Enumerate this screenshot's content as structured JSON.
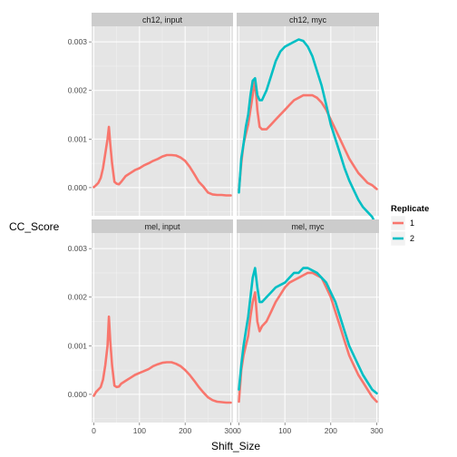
{
  "chart_data": {
    "type": "line",
    "xlabel": "Shift_Size",
    "ylabel": "CC_Score",
    "xlim": [
      -5,
      305
    ],
    "ylim": [
      -0.00058,
      0.00332
    ],
    "x_ticks": [
      0,
      100,
      200,
      300
    ],
    "y_ticks": [
      0.0,
      0.001,
      0.002,
      0.003
    ],
    "y_tick_labels": [
      "0.000",
      "0.001",
      "0.002",
      "0.003"
    ],
    "grid": true,
    "legend": {
      "title": "Replicate",
      "position": "right",
      "entries": [
        "1",
        "2"
      ]
    },
    "series_colors": {
      "1": "#F8766D",
      "2": "#00BFC4"
    },
    "panels": [
      {
        "strip": "ch12, input",
        "series": [
          {
            "name": "1",
            "x": [
              0,
              5,
              10,
              15,
              20,
              25,
              30,
              33,
              36,
              40,
              45,
              50,
              55,
              60,
              70,
              80,
              90,
              100,
              110,
              120,
              130,
              140,
              150,
              160,
              170,
              180,
              190,
              200,
              210,
              220,
              230,
              240,
              250,
              260,
              270,
              280,
              290,
              300
            ],
            "y": [
              1e-05,
              5e-05,
              0.0001,
              0.0002,
              0.0004,
              0.0007,
              0.001,
              0.00125,
              0.0009,
              0.0005,
              0.00012,
              8e-05,
              7e-05,
              0.00012,
              0.00024,
              0.0003,
              0.00036,
              0.0004,
              0.00046,
              0.0005,
              0.00055,
              0.00059,
              0.00064,
              0.00067,
              0.00067,
              0.00066,
              0.00062,
              0.00055,
              0.00043,
              0.00028,
              0.00012,
              2e-05,
              -0.0001,
              -0.00014,
              -0.00015,
              -0.00015,
              -0.00016,
              -0.00016
            ]
          }
        ]
      },
      {
        "strip": "ch12, myc",
        "series": [
          {
            "name": "1",
            "x": [
              0,
              5,
              10,
              15,
              20,
              25,
              30,
              35,
              40,
              45,
              50,
              60,
              70,
              80,
              90,
              100,
              110,
              120,
              130,
              140,
              150,
              160,
              170,
              180,
              190,
              200,
              210,
              220,
              230,
              240,
              250,
              260,
              270,
              280,
              290,
              300
            ],
            "y": [
              -5e-05,
              0.0005,
              0.0009,
              0.0011,
              0.0013,
              0.0016,
              0.0019,
              0.0022,
              0.0016,
              0.00125,
              0.0012,
              0.0012,
              0.0013,
              0.0014,
              0.0015,
              0.0016,
              0.0017,
              0.0018,
              0.00185,
              0.0019,
              0.0019,
              0.0019,
              0.00185,
              0.00175,
              0.0016,
              0.0014,
              0.0012,
              0.001,
              0.0008,
              0.0006,
              0.00045,
              0.0003,
              0.0002,
              0.0001,
              5e-05,
              -3e-05
            ]
          },
          {
            "name": "2",
            "x": [
              0,
              5,
              10,
              15,
              20,
              25,
              30,
              35,
              40,
              45,
              50,
              60,
              70,
              80,
              90,
              100,
              110,
              120,
              130,
              140,
              150,
              160,
              170,
              180,
              190,
              200,
              210,
              220,
              230,
              240,
              250,
              260,
              270,
              280,
              290,
              300
            ],
            "y": [
              -0.0001,
              0.0006,
              0.0009,
              0.00125,
              0.0015,
              0.0019,
              0.0022,
              0.00225,
              0.0019,
              0.0018,
              0.0018,
              0.002,
              0.0023,
              0.0026,
              0.0028,
              0.0029,
              0.00295,
              0.003,
              0.00305,
              0.00302,
              0.0029,
              0.0027,
              0.0024,
              0.0021,
              0.0017,
              0.0013,
              0.001,
              0.0007,
              0.0004,
              0.00015,
              -5e-05,
              -0.00025,
              -0.0004,
              -0.0005,
              -0.0006,
              -0.0008
            ]
          }
        ]
      },
      {
        "strip": "mel, input",
        "series": [
          {
            "name": "1",
            "x": [
              0,
              5,
              10,
              15,
              20,
              25,
              30,
              33,
              36,
              40,
              45,
              50,
              55,
              60,
              70,
              80,
              90,
              100,
              110,
              120,
              130,
              140,
              150,
              160,
              170,
              180,
              190,
              200,
              210,
              220,
              230,
              240,
              250,
              260,
              270,
              280,
              290,
              300
            ],
            "y": [
              -3e-05,
              5e-05,
              0.0001,
              0.00015,
              0.0003,
              0.0006,
              0.001,
              0.0016,
              0.0011,
              0.0006,
              0.00018,
              0.00015,
              0.00016,
              0.00022,
              0.00028,
              0.00034,
              0.0004,
              0.00044,
              0.00048,
              0.00052,
              0.00058,
              0.00062,
              0.00065,
              0.00066,
              0.00066,
              0.00063,
              0.00058,
              0.0005,
              0.0004,
              0.00028,
              0.00015,
              4e-05,
              -6e-05,
              -0.00012,
              -0.00015,
              -0.00016,
              -0.00017,
              -0.00017
            ]
          }
        ]
      },
      {
        "strip": "mel, myc",
        "series": [
          {
            "name": "1",
            "x": [
              0,
              5,
              10,
              15,
              20,
              25,
              30,
              35,
              40,
              45,
              50,
              60,
              70,
              80,
              90,
              100,
              110,
              120,
              130,
              140,
              150,
              160,
              170,
              180,
              190,
              200,
              210,
              220,
              230,
              240,
              250,
              260,
              270,
              280,
              290,
              300
            ],
            "y": [
              -0.00015,
              0.0005,
              0.0008,
              0.001,
              0.0012,
              0.0016,
              0.0019,
              0.0021,
              0.0015,
              0.0013,
              0.0014,
              0.0015,
              0.0017,
              0.0019,
              0.00205,
              0.0022,
              0.0023,
              0.00235,
              0.0024,
              0.00245,
              0.0025,
              0.0025,
              0.00245,
              0.0024,
              0.0022,
              0.002,
              0.0017,
              0.0014,
              0.0011,
              0.0008,
              0.0006,
              0.0004,
              0.00025,
              0.0001,
              -5e-05,
              -0.00015
            ]
          },
          {
            "name": "2",
            "x": [
              0,
              5,
              10,
              15,
              20,
              25,
              30,
              35,
              40,
              45,
              50,
              60,
              70,
              80,
              90,
              100,
              110,
              120,
              130,
              140,
              150,
              160,
              170,
              180,
              190,
              200,
              210,
              220,
              230,
              240,
              250,
              260,
              270,
              280,
              290,
              300
            ],
            "y": [
              0.0001,
              0.0006,
              0.001,
              0.0013,
              0.0016,
              0.002,
              0.0024,
              0.0026,
              0.0022,
              0.0019,
              0.0019,
              0.002,
              0.0021,
              0.0022,
              0.00225,
              0.0023,
              0.0024,
              0.0025,
              0.0025,
              0.0026,
              0.0026,
              0.00255,
              0.0025,
              0.0024,
              0.0023,
              0.0021,
              0.0019,
              0.0016,
              0.0013,
              0.001,
              0.0008,
              0.0006,
              0.0004,
              0.00025,
              0.0001,
              2e-05
            ]
          }
        ]
      }
    ]
  }
}
